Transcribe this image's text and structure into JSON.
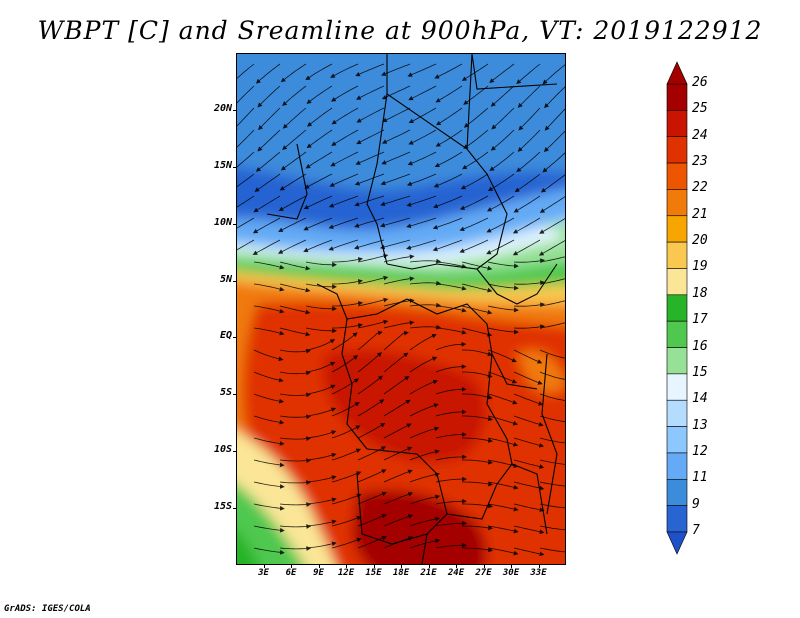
{
  "title": "WBPT [C] and Sreamline at 900hPa, VT: 2019122912",
  "credit": "GrADS: IGES/COLA",
  "map": {
    "lon_range": [
      0,
      36
    ],
    "lat_range": [
      -20,
      25
    ],
    "y_axis_labels": [
      {
        "lat": 20,
        "label": "20N"
      },
      {
        "lat": 15,
        "label": "15N"
      },
      {
        "lat": 10,
        "label": "10N"
      },
      {
        "lat": 5,
        "label": "5N"
      },
      {
        "lat": 0,
        "label": "EQ"
      },
      {
        "lat": -5,
        "label": "5S"
      },
      {
        "lat": -10,
        "label": "10S"
      },
      {
        "lat": -15,
        "label": "15S"
      }
    ],
    "x_axis_labels": [
      {
        "lon": 3,
        "label": "3E"
      },
      {
        "lon": 6,
        "label": "6E"
      },
      {
        "lon": 9,
        "label": "9E"
      },
      {
        "lon": 12,
        "label": "12E"
      },
      {
        "lon": 15,
        "label": "15E"
      },
      {
        "lon": 18,
        "label": "18E"
      },
      {
        "lon": 21,
        "label": "21E"
      },
      {
        "lon": 24,
        "label": "24E"
      },
      {
        "lon": 27,
        "label": "27E"
      },
      {
        "lon": 30,
        "label": "30E"
      },
      {
        "lon": 33,
        "label": "33E"
      }
    ]
  },
  "colorbar": {
    "levels": [
      "26",
      "25",
      "24",
      "23",
      "22",
      "21",
      "20",
      "19",
      "18",
      "17",
      "16",
      "15",
      "14",
      "13",
      "12",
      "11",
      "9",
      "7"
    ],
    "colors": [
      "#a50000",
      "#c81400",
      "#e03200",
      "#ee5500",
      "#f07a0a",
      "#f7a500",
      "#fac850",
      "#fae696",
      "#28b428",
      "#50c850",
      "#96e196",
      "#e6f5ff",
      "#b4dcff",
      "#8cc8ff",
      "#64aaf5",
      "#3c8cdc",
      "#2864d2"
    ]
  }
}
